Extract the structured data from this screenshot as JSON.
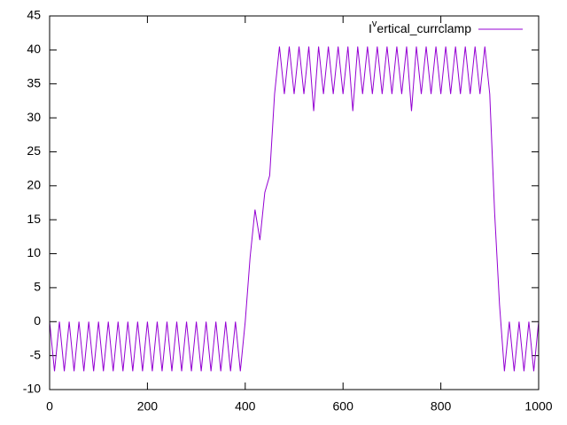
{
  "chart_data": {
    "type": "line",
    "x": [
      0,
      10,
      20,
      30,
      40,
      50,
      60,
      70,
      80,
      90,
      100,
      110,
      120,
      130,
      140,
      150,
      160,
      170,
      180,
      190,
      200,
      210,
      220,
      230,
      240,
      250,
      260,
      270,
      280,
      290,
      300,
      310,
      320,
      330,
      340,
      350,
      360,
      370,
      380,
      390,
      400,
      410,
      420,
      430,
      440,
      450,
      460,
      470,
      480,
      490,
      500,
      510,
      520,
      530,
      540,
      550,
      560,
      570,
      580,
      590,
      600,
      610,
      620,
      630,
      640,
      650,
      660,
      670,
      680,
      690,
      700,
      710,
      720,
      730,
      740,
      750,
      760,
      770,
      780,
      790,
      800,
      810,
      820,
      830,
      840,
      850,
      860,
      870,
      880,
      890,
      900,
      910,
      920,
      930,
      940,
      950,
      960,
      970,
      980,
      990,
      1000
    ],
    "series": [
      {
        "name": "Ivertical_currclamp",
        "color": "#9400d3",
        "values": [
          0,
          -7.3,
          0,
          -7.3,
          0,
          -7.3,
          0,
          -7.3,
          0,
          -7.3,
          0,
          -7.3,
          0,
          -7.3,
          0,
          -7.3,
          0,
          -7.3,
          0,
          -7.3,
          0,
          -7.3,
          0,
          -7.3,
          0,
          -7.3,
          0,
          -7.3,
          0,
          -7.3,
          0,
          -7.3,
          0,
          -7.3,
          0,
          -7.3,
          0,
          -7.3,
          0,
          -7.3,
          0,
          9.5,
          16.5,
          12,
          19,
          21.5,
          33.5,
          40.5,
          33.5,
          40.5,
          33.5,
          40.5,
          33.5,
          40.5,
          31,
          40.5,
          33.5,
          40.5,
          33.5,
          40.5,
          33.5,
          40.5,
          31,
          40.5,
          33.5,
          40.5,
          33.5,
          40.5,
          33.5,
          40.5,
          33.5,
          40.5,
          33.5,
          40.5,
          31,
          40.5,
          33.5,
          40.5,
          33.5,
          40.5,
          33.5,
          40.5,
          33.5,
          40.5,
          33.5,
          40.5,
          33.5,
          40.5,
          33.5,
          40.5,
          33.5,
          16,
          2.5,
          -7.3,
          0,
          -7.3,
          0,
          -7.3,
          0,
          -7.3,
          0
        ]
      }
    ],
    "xlim": [
      0,
      1000
    ],
    "xticks": [
      0,
      200,
      400,
      600,
      800,
      1000
    ],
    "ylim": [
      -10,
      45
    ],
    "yticks": [
      -10,
      -5,
      0,
      5,
      10,
      15,
      20,
      25,
      30,
      35,
      40,
      45
    ],
    "grid": false,
    "legend": "top-right"
  }
}
